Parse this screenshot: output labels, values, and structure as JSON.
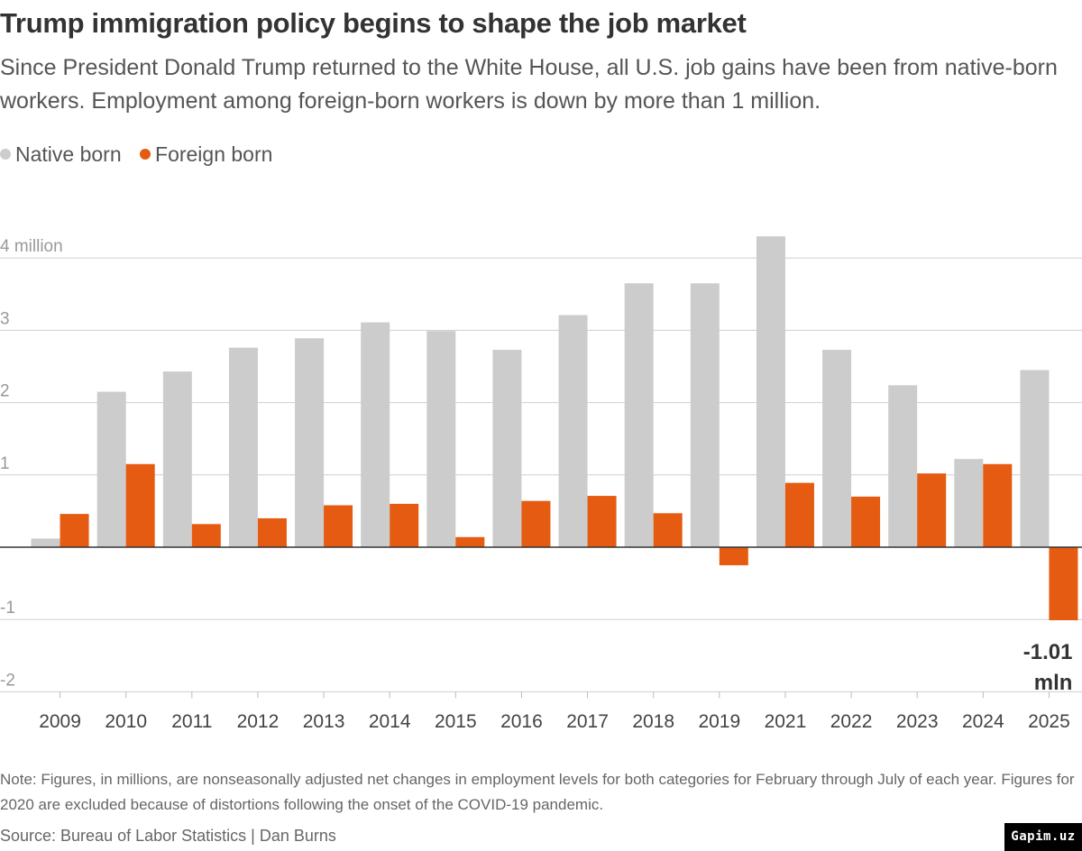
{
  "header": {
    "title": "Trump immigration policy begins to shape the job market",
    "subtitle": "Since President Donald Trump returned to the White House, all U.S. job gains have been from native-born workers. Employment among foreign-born workers is down by more than 1 million."
  },
  "colors": {
    "native": "#cccccc",
    "foreign": "#e55b12",
    "grid": "#cfcfcf",
    "tick_text": "#999999"
  },
  "chart_data": {
    "type": "bar",
    "categories": [
      "2009",
      "2010",
      "2011",
      "2012",
      "2013",
      "2014",
      "2015",
      "2016",
      "2017",
      "2018",
      "2019",
      "2021",
      "2022",
      "2023",
      "2024",
      "2025"
    ],
    "series": [
      {
        "name": "Native born",
        "values": [
          0.12,
          2.15,
          2.43,
          2.76,
          2.89,
          3.11,
          2.99,
          2.73,
          3.21,
          3.65,
          3.65,
          4.3,
          2.73,
          2.24,
          1.22,
          2.45
        ]
      },
      {
        "name": "Foreign born",
        "values": [
          0.46,
          1.15,
          0.32,
          0.4,
          0.58,
          0.6,
          0.14,
          0.64,
          0.71,
          0.47,
          -0.25,
          0.89,
          0.7,
          1.02,
          1.15,
          -1.01
        ]
      }
    ],
    "ylim": [
      -2,
      4
    ],
    "yticks": [
      {
        "value": 4,
        "label": "4 million"
      },
      {
        "value": 3,
        "label": "3"
      },
      {
        "value": 2,
        "label": "2"
      },
      {
        "value": 1,
        "label": "1"
      },
      {
        "value": -1,
        "label": "-1"
      },
      {
        "value": -2,
        "label": "-2"
      }
    ],
    "annotation": {
      "category": "2025",
      "series": "Foreign born",
      "line1": "-1.01",
      "line2": "mln"
    },
    "legend_position": "top-left",
    "grid": true
  },
  "footer": {
    "note": "Note: Figures, in millions, are nonseasonally adjusted net changes in employment levels for both categories for February through July of each year. Figures for 2020 are excluded because of distortions following the onset of the COVID-19 pandemic.",
    "source": "Source: Bureau of Labor Statistics | Dan Burns"
  },
  "watermark": "Gapim.uz"
}
